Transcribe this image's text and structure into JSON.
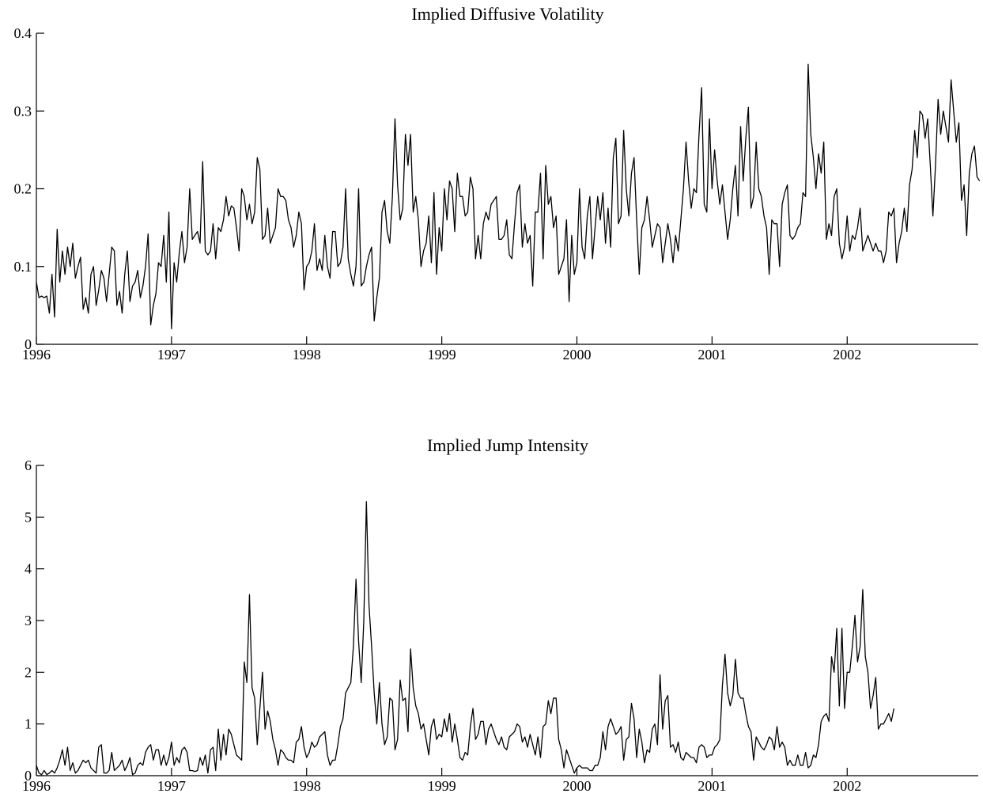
{
  "chart_data": [
    {
      "type": "line",
      "title": "Implied Diffusive Volatility",
      "xlabel": "",
      "ylabel": "",
      "xlim": [
        1996,
        2002.97
      ],
      "ylim": [
        0,
        0.4
      ],
      "grid": false,
      "x_ticks": [
        "1996",
        "1997",
        "1998",
        "1999",
        "2000",
        "2001",
        "2002"
      ],
      "y_ticks": [
        "0",
        "0.1",
        "0.2",
        "0.3",
        "0.4"
      ],
      "x_start": 1996,
      "x_step": 0.01923,
      "series": [
        {
          "values": [
            0.08,
            0.06,
            0.062,
            0.06,
            0.062,
            0.04,
            0.09,
            0.035,
            0.148,
            0.08,
            0.12,
            0.09,
            0.125,
            0.1,
            0.13,
            0.085,
            0.1,
            0.112,
            0.045,
            0.06,
            0.04,
            0.09,
            0.1,
            0.05,
            0.07,
            0.095,
            0.085,
            0.055,
            0.09,
            0.125,
            0.12,
            0.05,
            0.068,
            0.04,
            0.09,
            0.12,
            0.055,
            0.075,
            0.08,
            0.095,
            0.06,
            0.075,
            0.1,
            0.142,
            0.025,
            0.05,
            0.065,
            0.105,
            0.1,
            0.14,
            0.08,
            0.17,
            0.02,
            0.105,
            0.08,
            0.118,
            0.145,
            0.105,
            0.125,
            0.2,
            0.135,
            0.14,
            0.145,
            0.13,
            0.235,
            0.12,
            0.115,
            0.12,
            0.155,
            0.11,
            0.15,
            0.145,
            0.16,
            0.19,
            0.165,
            0.178,
            0.175,
            0.15,
            0.12,
            0.2,
            0.19,
            0.16,
            0.18,
            0.155,
            0.17,
            0.24,
            0.225,
            0.135,
            0.14,
            0.175,
            0.13,
            0.14,
            0.15,
            0.2,
            0.19,
            0.19,
            0.185,
            0.16,
            0.15,
            0.125,
            0.14,
            0.17,
            0.155,
            0.07,
            0.1,
            0.105,
            0.12,
            0.155,
            0.095,
            0.11,
            0.095,
            0.14,
            0.1,
            0.085,
            0.145,
            0.145,
            0.1,
            0.105,
            0.125,
            0.2,
            0.11,
            0.09,
            0.075,
            0.1,
            0.2,
            0.075,
            0.08,
            0.1,
            0.115,
            0.125,
            0.03,
            0.06,
            0.085,
            0.17,
            0.185,
            0.145,
            0.13,
            0.19,
            0.29,
            0.205,
            0.16,
            0.175,
            0.27,
            0.23,
            0.27,
            0.17,
            0.19,
            0.16,
            0.1,
            0.12,
            0.13,
            0.165,
            0.105,
            0.195,
            0.09,
            0.15,
            0.12,
            0.2,
            0.16,
            0.21,
            0.2,
            0.145,
            0.22,
            0.19,
            0.19,
            0.165,
            0.17,
            0.215,
            0.2,
            0.11,
            0.14,
            0.11,
            0.155,
            0.17,
            0.16,
            0.18,
            0.185,
            0.19,
            0.135,
            0.135,
            0.14,
            0.16,
            0.115,
            0.11,
            0.155,
            0.195,
            0.205,
            0.125,
            0.155,
            0.13,
            0.14,
            0.075,
            0.17,
            0.17,
            0.22,
            0.11,
            0.23,
            0.18,
            0.19,
            0.15,
            0.165,
            0.09,
            0.1,
            0.11,
            0.16,
            0.055,
            0.14,
            0.09,
            0.105,
            0.2,
            0.125,
            0.11,
            0.165,
            0.19,
            0.11,
            0.15,
            0.19,
            0.16,
            0.195,
            0.13,
            0.175,
            0.125,
            0.24,
            0.265,
            0.155,
            0.165,
            0.275,
            0.2,
            0.165,
            0.22,
            0.24,
            0.16,
            0.09,
            0.15,
            0.16,
            0.19,
            0.16,
            0.125,
            0.14,
            0.155,
            0.15,
            0.105,
            0.13,
            0.155,
            0.135,
            0.105,
            0.14,
            0.12,
            0.16,
            0.2,
            0.26,
            0.21,
            0.175,
            0.2,
            0.195,
            0.27,
            0.33,
            0.18,
            0.17,
            0.29,
            0.2,
            0.25,
            0.21,
            0.18,
            0.205,
            0.17,
            0.135,
            0.16,
            0.2,
            0.23,
            0.165,
            0.28,
            0.21,
            0.265,
            0.305,
            0.175,
            0.19,
            0.26,
            0.2,
            0.19,
            0.165,
            0.15,
            0.09,
            0.16,
            0.155,
            0.155,
            0.1,
            0.18,
            0.195,
            0.205,
            0.14,
            0.135,
            0.14,
            0.15,
            0.155,
            0.195,
            0.19,
            0.36,
            0.27,
            0.24,
            0.2,
            0.245,
            0.22,
            0.26,
            0.135,
            0.155,
            0.14,
            0.19,
            0.2,
            0.13,
            0.11,
            0.125,
            0.165,
            0.12,
            0.14,
            0.135,
            0.15,
            0.175,
            0.12,
            0.13,
            0.14,
            0.13,
            0.12,
            0.13,
            0.12,
            0.12,
            0.105,
            0.12,
            0.17,
            0.165,
            0.175,
            0.105,
            0.13,
            0.145,
            0.175,
            0.145,
            0.205,
            0.225,
            0.275,
            0.24,
            0.3,
            0.295,
            0.265,
            0.29,
            0.23,
            0.165,
            0.23,
            0.315,
            0.27,
            0.3,
            0.28,
            0.26,
            0.34,
            0.3,
            0.26,
            0.285,
            0.185,
            0.205,
            0.14,
            0.22,
            0.245,
            0.255,
            0.215,
            0.21
          ]
        }
      ]
    },
    {
      "type": "line",
      "title": "Implied Jump Intensity",
      "xlabel": "",
      "ylabel": "",
      "xlim": [
        1996,
        2002.97
      ],
      "ylim": [
        0,
        6
      ],
      "grid": false,
      "x_ticks": [
        "1996",
        "1997",
        "1998",
        "1999",
        "2000",
        "2001",
        "2002"
      ],
      "y_ticks": [
        "0",
        "1",
        "2",
        "3",
        "4",
        "5",
        "6"
      ],
      "x_start": 1996,
      "x_step": 0.01923,
      "series": [
        {
          "values": [
            0.2,
            0.05,
            0.02,
            0.1,
            0.02,
            0.05,
            0.1,
            0.05,
            0.15,
            0.3,
            0.5,
            0.2,
            0.55,
            0.1,
            0.25,
            0.05,
            0.1,
            0.2,
            0.3,
            0.25,
            0.3,
            0.15,
            0.1,
            0.05,
            0.55,
            0.6,
            0.05,
            0.05,
            0.1,
            0.45,
            0.1,
            0.15,
            0.2,
            0.3,
            0.1,
            0.2,
            0.35,
            0.02,
            0.05,
            0.2,
            0.25,
            0.2,
            0.45,
            0.55,
            0.6,
            0.3,
            0.5,
            0.5,
            0.2,
            0.4,
            0.2,
            0.35,
            0.65,
            0.2,
            0.35,
            0.25,
            0.5,
            0.55,
            0.45,
            0.1,
            0.1,
            0.08,
            0.1,
            0.35,
            0.2,
            0.4,
            0.05,
            0.5,
            0.55,
            0.1,
            0.9,
            0.3,
            0.8,
            0.4,
            0.9,
            0.8,
            0.6,
            0.4,
            0.35,
            0.3,
            2.2,
            1.8,
            3.5,
            1.7,
            1.5,
            0.6,
            1.3,
            2,
            0.9,
            1.25,
            1.05,
            0.7,
            0.5,
            0.2,
            0.5,
            0.45,
            0.35,
            0.3,
            0.3,
            0.25,
            0.65,
            0.7,
            0.95,
            0.55,
            0.35,
            0.45,
            0.65,
            0.55,
            0.6,
            0.75,
            0.8,
            0.85,
            0.4,
            0.2,
            0.3,
            0.3,
            0.6,
            0.95,
            1.1,
            1.6,
            1.7,
            1.8,
            2.5,
            3.8,
            2.6,
            1.8,
            3,
            5.3,
            3.3,
            2.5,
            1.6,
            1,
            1.8,
            1,
            0.6,
            0.75,
            1.5,
            1.45,
            0.5,
            0.7,
            1.85,
            1.45,
            1.5,
            0.85,
            2.45,
            1.7,
            1.35,
            1.2,
            0.9,
            1,
            0.7,
            0.4,
            0.95,
            1.1,
            0.7,
            0.8,
            0.75,
            1.1,
            0.85,
            1.2,
            0.65,
            1,
            0.7,
            0.35,
            0.3,
            0.45,
            0.4,
            0.95,
            1.3,
            0.7,
            0.8,
            1.05,
            1.05,
            0.6,
            0.9,
            1,
            0.85,
            0.7,
            0.6,
            0.75,
            0.55,
            0.5,
            0.75,
            0.8,
            0.85,
            1,
            0.95,
            0.65,
            0.75,
            0.55,
            0.8,
            0.6,
            0.4,
            0.75,
            0.35,
            0.95,
            1,
            1.45,
            1.2,
            1.5,
            1.5,
            0.7,
            0.5,
            0.15,
            0.5,
            0.35,
            0.2,
            0.05,
            0.15,
            0.2,
            0.15,
            0.15,
            0.15,
            0.1,
            0.1,
            0.2,
            0.2,
            0.35,
            0.85,
            0.5,
            0.95,
            1.1,
            0.95,
            0.8,
            0.85,
            0.95,
            0.3,
            0.7,
            0.75,
            1.4,
            1.1,
            0.35,
            0.9,
            0.65,
            0.25,
            0.5,
            0.45,
            0.9,
            1,
            0.6,
            1.95,
            0.9,
            1.45,
            1.55,
            0.55,
            0.6,
            0.45,
            0.65,
            0.35,
            0.3,
            0.45,
            0.4,
            0.35,
            0.35,
            0.25,
            0.55,
            0.6,
            0.55,
            0.35,
            0.4,
            0.4,
            0.55,
            0.6,
            0.7,
            1.75,
            2.35,
            1.6,
            1.35,
            1.55,
            2.25,
            1.6,
            1.5,
            1.5,
            1.2,
            0.95,
            0.85,
            0.3,
            0.75,
            0.65,
            0.55,
            0.5,
            0.6,
            0.75,
            0.7,
            0.5,
            0.95,
            0.55,
            0.65,
            0.55,
            0.2,
            0.3,
            0.2,
            0.2,
            0.4,
            0.2,
            0.2,
            0.45,
            0.15,
            0.2,
            0.4,
            0.35,
            0.6,
            1.05,
            1.15,
            1.2,
            1.05,
            2.3,
            2,
            2.85,
            1.35,
            2.85,
            1.3,
            2,
            2,
            2.5,
            3.1,
            2.2,
            2.5,
            3.6,
            2.3,
            2,
            1.3,
            1.55,
            1.9,
            0.9,
            1,
            1,
            1.1,
            1.2,
            1.05,
            1.3
          ]
        }
      ]
    }
  ]
}
